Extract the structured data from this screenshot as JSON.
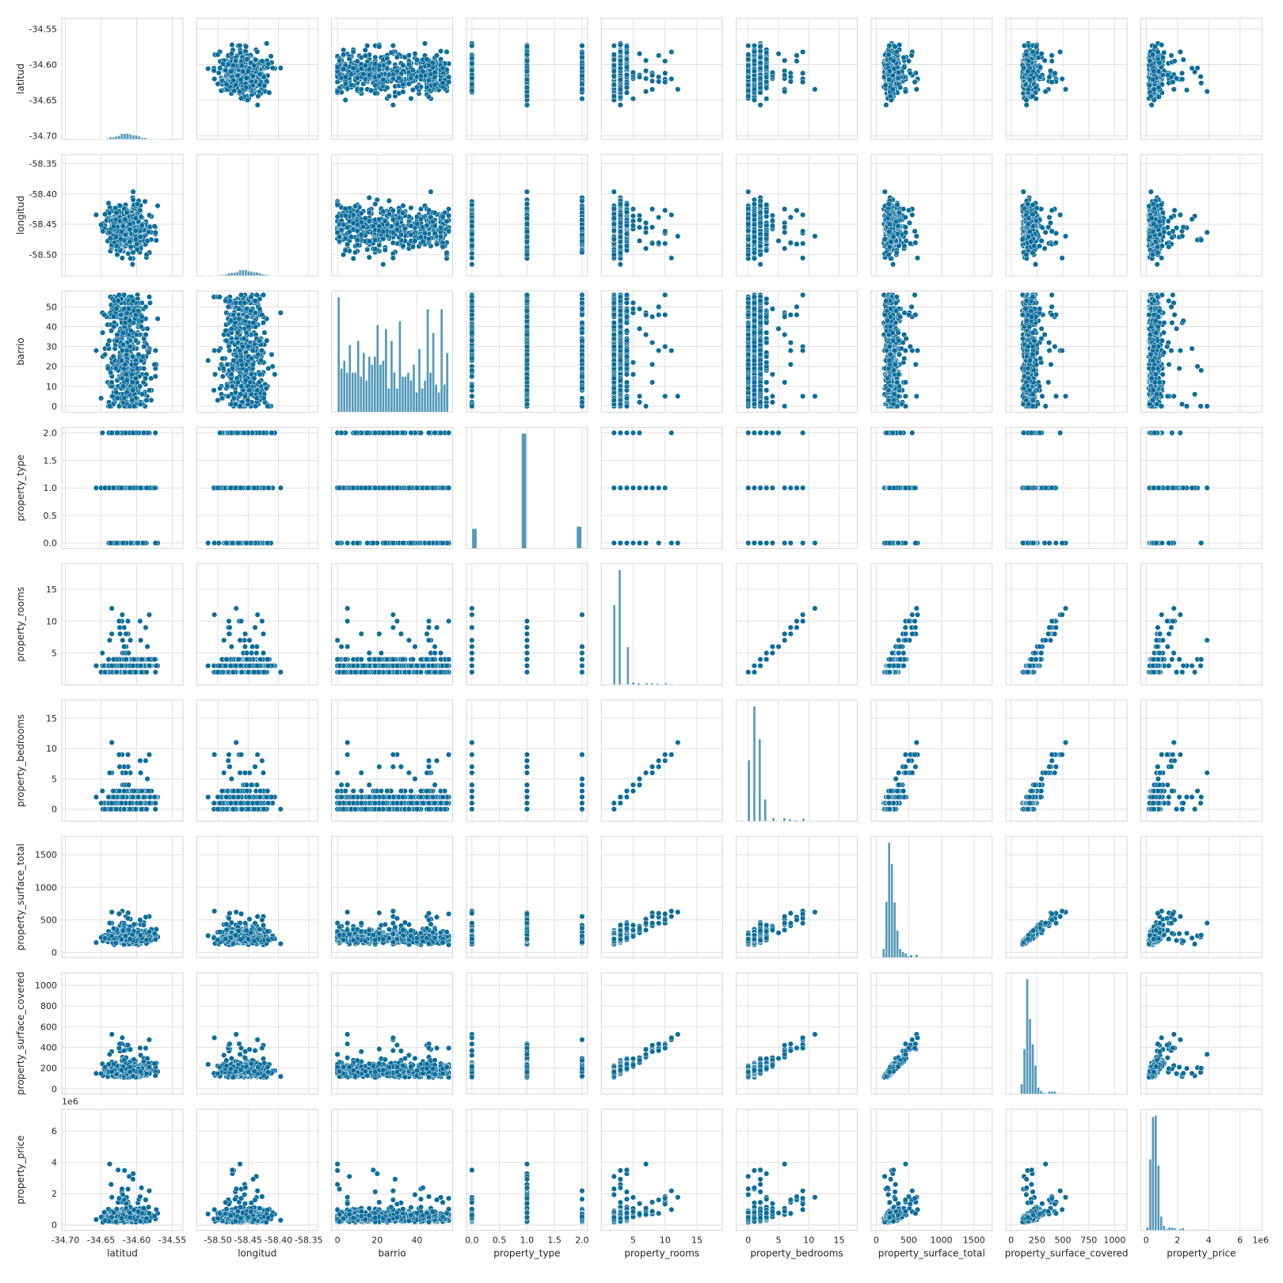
{
  "chart_data": {
    "type": "scatter",
    "title": "",
    "variables": [
      {
        "key": "latitud",
        "label": "latitud",
        "lim": [
          -34.705,
          -34.535
        ],
        "ticks": [
          -34.7,
          -34.65,
          -34.6,
          -34.55
        ],
        "tick_labels": [
          "-34.70",
          "-34.65",
          "-34.60",
          "-34.55"
        ],
        "range": [
          -34.699,
          -34.538
        ],
        "cat": false
      },
      {
        "key": "longitud",
        "label": "longitud",
        "lim": [
          -58.535,
          -58.335
        ],
        "ticks": [
          -58.5,
          -58.45,
          -58.4,
          -58.35
        ],
        "tick_labels": [
          "-58.50",
          "-58.45",
          "-58.40",
          "-58.35"
        ],
        "range": [
          -58.53,
          -58.345
        ],
        "cat": false
      },
      {
        "key": "barrio",
        "label": "barrio",
        "lim": [
          -3,
          58
        ],
        "ticks": [
          0,
          10,
          20,
          30,
          40,
          50
        ],
        "tick_labels": [
          "0",
          "20",
          "40"
        ],
        "x_tick_values": [
          0,
          20,
          40
        ],
        "y_tick_labels": [
          "0",
          "10",
          "20",
          "30",
          "40",
          "50"
        ],
        "range": [
          0,
          56
        ],
        "cat": false
      },
      {
        "key": "property_type",
        "label": "property_type",
        "lim": [
          -0.1,
          2.1
        ],
        "ticks": [
          0.0,
          0.5,
          1.0,
          1.5,
          2.0
        ],
        "tick_labels": [
          "0.0",
          "0.5",
          "1.0",
          "1.5",
          "2.0"
        ],
        "range": [
          0,
          2
        ],
        "cat": true
      },
      {
        "key": "property_rooms",
        "label": "property_rooms",
        "lim": [
          0,
          19
        ],
        "ticks": [
          5,
          10,
          15
        ],
        "tick_labels": [
          "5",
          "10",
          "15"
        ],
        "range": [
          1,
          18
        ],
        "cat": false
      },
      {
        "key": "property_bedrooms",
        "label": "property_bedrooms",
        "lim": [
          -2,
          18
        ],
        "ticks": [
          0,
          5,
          10,
          15
        ],
        "tick_labels": [
          "0",
          "5",
          "10",
          "15"
        ],
        "range": [
          -1,
          17
        ],
        "cat": false
      },
      {
        "key": "property_surface_total",
        "label": "property_surface_total",
        "lim": [
          -80,
          1780
        ],
        "ticks": [
          0,
          500,
          1000,
          1500
        ],
        "tick_labels": [
          "0",
          "500",
          "1000",
          "1500"
        ],
        "range": [
          10,
          1700
        ],
        "cat": false
      },
      {
        "key": "property_surface_covered",
        "label": "property_surface_covered",
        "lim": [
          -50,
          1120
        ],
        "ticks": [
          0,
          250,
          500,
          750,
          1000
        ],
        "tick_labels": [
          "0",
          "250",
          "500",
          "750",
          "1000"
        ],
        "y_tick_values": [
          0,
          200,
          400,
          600,
          800,
          1000
        ],
        "y_tick_labels": [
          "0",
          "200",
          "400",
          "600",
          "800",
          "1000"
        ],
        "range": [
          10,
          1080
        ],
        "cat": false
      },
      {
        "key": "property_price",
        "label": "property_price",
        "lim": [
          -350000,
          7400000
        ],
        "ticks": [
          0,
          2000000,
          4000000,
          6000000
        ],
        "tick_labels": [
          "0",
          "2",
          "4",
          "6"
        ],
        "range": [
          5000,
          7000000
        ],
        "cat": false,
        "offset_text": "1e6"
      }
    ],
    "point_color": "#0b6d9b",
    "hist_color": "#0b6d9b",
    "grid": true,
    "diagonal": "histogram",
    "offdiagonal": "scatter"
  }
}
